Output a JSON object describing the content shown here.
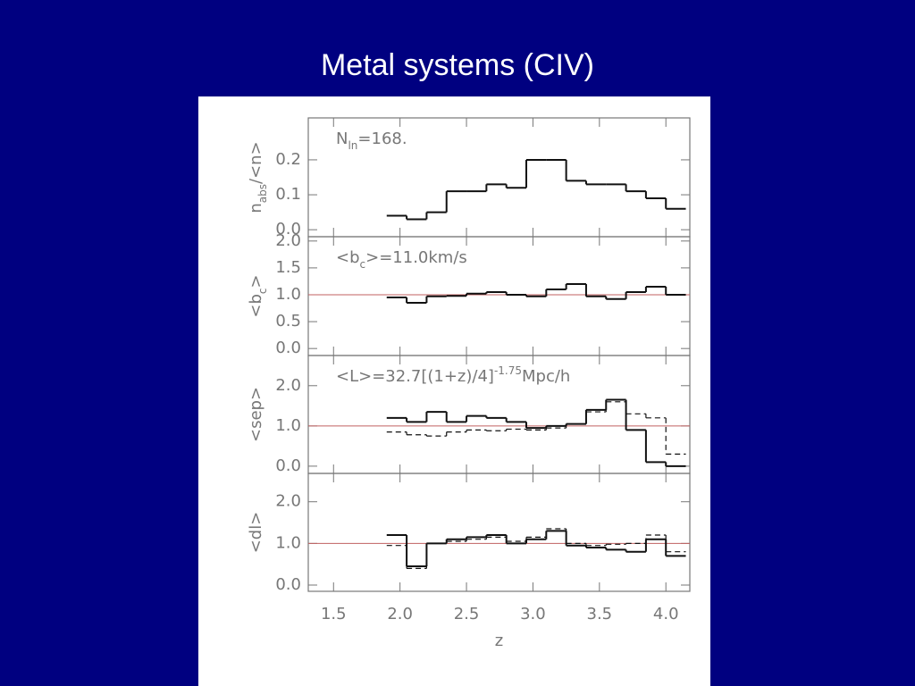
{
  "slide_title": "Metal systems (CIV)",
  "x_axis": {
    "label": "z",
    "xlim": [
      1.31,
      4.18
    ],
    "xticks": [
      {
        "value": 1.5,
        "label": "1.5"
      },
      {
        "value": 2,
        "label": "2.0"
      },
      {
        "value": 2.5,
        "label": "2.5"
      },
      {
        "value": 3,
        "label": "3.0"
      },
      {
        "value": 3.5,
        "label": "3.5"
      },
      {
        "value": 4,
        "label": "4.0"
      }
    ]
  },
  "chart_data": [
    {
      "type": "histogram",
      "ylabel": [
        "n",
        "abs",
        "/<n>"
      ],
      "annotation": [
        "N",
        "ln",
        "=168."
      ],
      "ylim": [
        -0.02,
        0.32
      ],
      "yticks": [
        {
          "value": 0,
          "label": "0.0"
        },
        0.1,
        0.2
      ],
      "bins": [
        1.9,
        2.05,
        2.2,
        2.35,
        2.5,
        2.65,
        2.8,
        2.95,
        3.1,
        3.25,
        3.4,
        3.55,
        3.7,
        3.85,
        4.0,
        4.15
      ],
      "series": [
        {
          "color": "#111111",
          "dashed": false,
          "values": [
            0.04,
            0.03,
            0.05,
            0.11,
            0.11,
            0.13,
            0.12,
            0.2,
            0.2,
            0.14,
            0.13,
            0.13,
            0.11,
            0.09,
            0.06
          ]
        }
      ]
    },
    {
      "type": "histogram",
      "ylabel": [
        "<b",
        "c",
        ">"
      ],
      "annotation": [
        "<b",
        "c",
        ">=11.0km/s"
      ],
      "ylim": [
        -0.13,
        2.08
      ],
      "yticks": [
        {
          "value": 0,
          "label": "0.0"
        },
        0.5,
        {
          "value": 1,
          "label": "1.0"
        },
        1.5,
        {
          "value": 2,
          "label": "2.0"
        }
      ],
      "hline": 1,
      "bins": [
        1.9,
        2.05,
        2.2,
        2.35,
        2.5,
        2.65,
        2.8,
        2.95,
        3.1,
        3.25,
        3.4,
        3.55,
        3.7,
        3.85,
        4.0,
        4.15
      ],
      "series": [
        {
          "color": "#111111",
          "dashed": false,
          "values": [
            0.95,
            0.85,
            0.97,
            0.98,
            1.02,
            1.05,
            1.0,
            0.97,
            1.1,
            1.2,
            0.97,
            0.92,
            1.05,
            1.15,
            1.0
          ]
        }
      ]
    },
    {
      "type": "histogram",
      "ylabel": [
        "<sep>"
      ],
      "annotation": [
        "<L>=32.7[(1+z)/4]",
        "-1.75",
        "Mpc/h"
      ],
      "ylim": [
        -0.18,
        2.75
      ],
      "yticks": [
        {
          "value": 0,
          "label": "0.0"
        },
        {
          "value": 1,
          "label": "1.0"
        },
        {
          "value": 2,
          "label": "2.0"
        }
      ],
      "hline": 1,
      "bins": [
        1.9,
        2.05,
        2.2,
        2.35,
        2.5,
        2.65,
        2.8,
        2.95,
        3.1,
        3.25,
        3.4,
        3.55,
        3.7,
        3.85,
        4.0,
        4.15
      ],
      "series": [
        {
          "color": "#111111",
          "dashed": false,
          "values": [
            1.2,
            1.1,
            1.35,
            1.1,
            1.25,
            1.2,
            1.1,
            0.95,
            1.0,
            1.05,
            1.4,
            1.65,
            0.9,
            0.1,
            0.0
          ]
        },
        {
          "color": "#111111",
          "dashed": true,
          "values": [
            0.85,
            0.78,
            0.75,
            0.85,
            0.9,
            0.88,
            0.92,
            0.9,
            0.95,
            1.05,
            1.35,
            1.6,
            1.3,
            1.2,
            0.3
          ]
        }
      ]
    },
    {
      "type": "histogram",
      "ylabel": [
        "<dl>"
      ],
      "ylim": [
        -0.15,
        2.68
      ],
      "yticks": [
        {
          "value": 0,
          "label": "0.0"
        },
        {
          "value": 1,
          "label": "1.0"
        },
        {
          "value": 2,
          "label": "2.0"
        }
      ],
      "hline": 1,
      "bins": [
        1.9,
        2.05,
        2.2,
        2.35,
        2.5,
        2.65,
        2.8,
        2.95,
        3.1,
        3.25,
        3.4,
        3.55,
        3.7,
        3.85,
        4.0,
        4.15
      ],
      "series": [
        {
          "color": "#111111",
          "dashed": false,
          "values": [
            1.2,
            0.45,
            1.0,
            1.1,
            1.15,
            1.2,
            1.0,
            1.1,
            1.3,
            0.95,
            0.9,
            0.85,
            0.8,
            1.1,
            0.7
          ]
        },
        {
          "color": "#111111",
          "dashed": true,
          "values": [
            0.95,
            0.4,
            1.0,
            1.05,
            1.1,
            1.15,
            1.05,
            1.15,
            1.35,
            1.0,
            0.95,
            0.98,
            1.0,
            1.2,
            0.8
          ]
        }
      ]
    }
  ]
}
